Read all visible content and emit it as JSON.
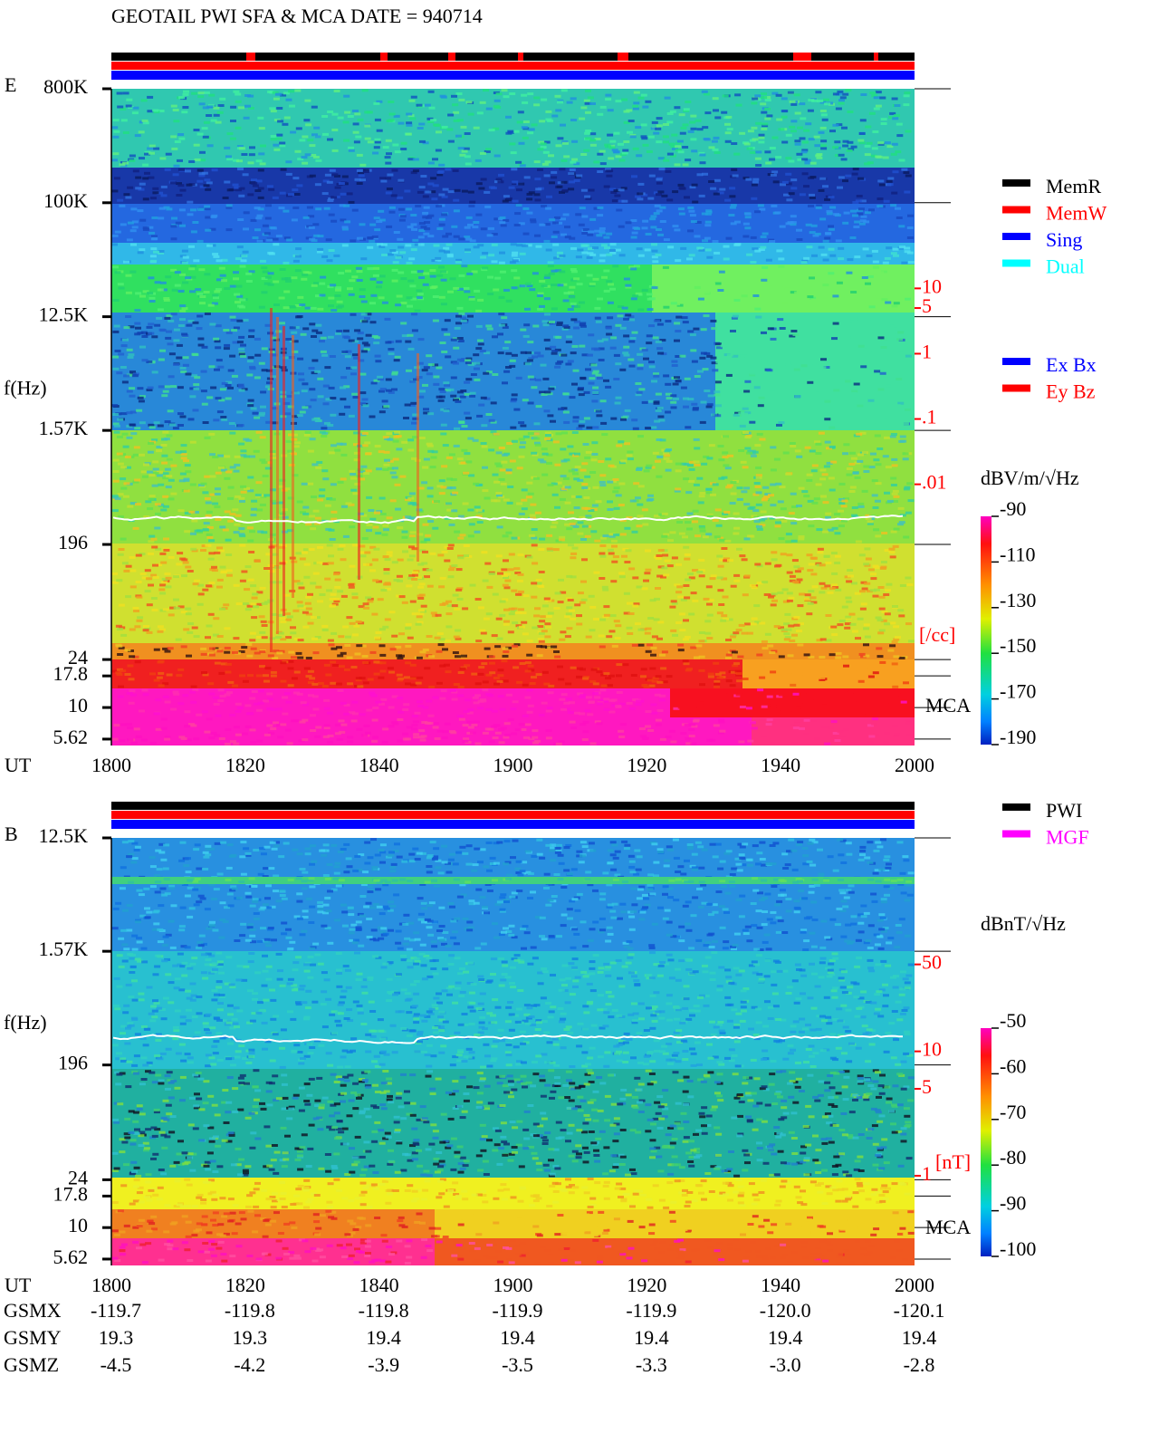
{
  "chart_data": [
    {
      "type": "spectrogram",
      "title": "GEOTAIL  PWI SFA & MCA   DATE = 940714",
      "panel_label": "E",
      "y_label": "f(Hz)",
      "x_label": "UT",
      "categories": [
        "1800",
        "1820",
        "1840",
        "1900",
        "1920",
        "1940",
        "2000"
      ],
      "log_scale": true,
      "ylim": [
        5,
        800000
      ],
      "yticks": [
        {
          "value": 800000,
          "label": "800K"
        },
        {
          "value": 100000,
          "label": "100K"
        },
        {
          "value": 12500,
          "label": "12.5K"
        },
        {
          "value": 1570,
          "label": "1.57K"
        },
        196,
        24,
        17.8,
        10,
        5.62
      ],
      "instrument_label": "MCA",
      "y2_label": "[/cc]",
      "y2_color": "#ff0000",
      "y2lim": [
        1e-06,
        11400
      ],
      "y2ticks": [
        10,
        5,
        1,
        {
          "value": 0.1,
          "label": ".1"
        },
        {
          "value": 0.01,
          "label": ".01"
        }
      ],
      "colorbar": {
        "label": "dBV/m/√Hz",
        "lim": [
          -190,
          -90
        ],
        "ticks": [
          -90,
          -110,
          -130,
          -150,
          -170,
          -190
        ]
      },
      "legend": [
        {
          "name": "MemR",
          "color": "#000000"
        },
        {
          "name": "MemW",
          "color": "#ff0000"
        },
        {
          "name": "Sing",
          "color": "#0000ff"
        },
        {
          "name": "Dual",
          "color": "#00ffff"
        }
      ],
      "legend2": [
        {
          "name": "Ex Bx",
          "color": "#0000ff"
        },
        {
          "name": "Ey Bz",
          "color": "#ff0000"
        }
      ]
    },
    {
      "type": "spectrogram",
      "panel_label": "B",
      "y_label": "f(Hz)",
      "x_label": "UT",
      "categories": [
        "1800",
        "1820",
        "1840",
        "1900",
        "1920",
        "1940",
        "2000"
      ],
      "log_scale": true,
      "ylim": [
        5,
        12500
      ],
      "yticks": [
        {
          "value": 12500,
          "label": "12.5K"
        },
        {
          "value": 1570,
          "label": "1.57K"
        },
        196,
        24,
        17.8,
        10,
        5.62
      ],
      "instrument_label": "MCA",
      "y2_label": "[nT]",
      "y2_color": "#ff0000",
      "y2lim": [
        0.19,
        520
      ],
      "y2ticks": [
        50,
        10,
        5,
        1
      ],
      "colorbar": {
        "label": "dBnT/√Hz",
        "lim": [
          -100,
          -50
        ],
        "ticks": [
          -50,
          -60,
          -70,
          -80,
          -90,
          -100
        ]
      },
      "legend": [
        {
          "name": "PWI",
          "color": "#000000"
        },
        {
          "name": "MGF",
          "color": "#ff00ff"
        }
      ],
      "orbit": [
        {
          "name": "GSMX",
          "values": [
            -119.7,
            -119.8,
            -119.8,
            -119.9,
            -119.9,
            -120.0,
            -120.1
          ],
          "value_labels": [
            "-119.7",
            "-119.8",
            "-119.8",
            "-119.9",
            "-119.9",
            "-120.0",
            "-120.1"
          ]
        },
        {
          "name": "GSMY",
          "values": [
            19.3,
            19.3,
            19.4,
            19.4,
            19.4,
            19.4,
            19.4
          ]
        },
        {
          "name": "GSMZ",
          "values": [
            -4.5,
            -4.2,
            -3.9,
            -3.5,
            -3.3,
            -3.0,
            -2.8
          ],
          "value_labels": [
            "-4.5",
            "-4.2",
            "-3.9",
            "-3.5",
            "-3.3",
            "-3.0",
            "-2.8"
          ]
        }
      ]
    }
  ]
}
